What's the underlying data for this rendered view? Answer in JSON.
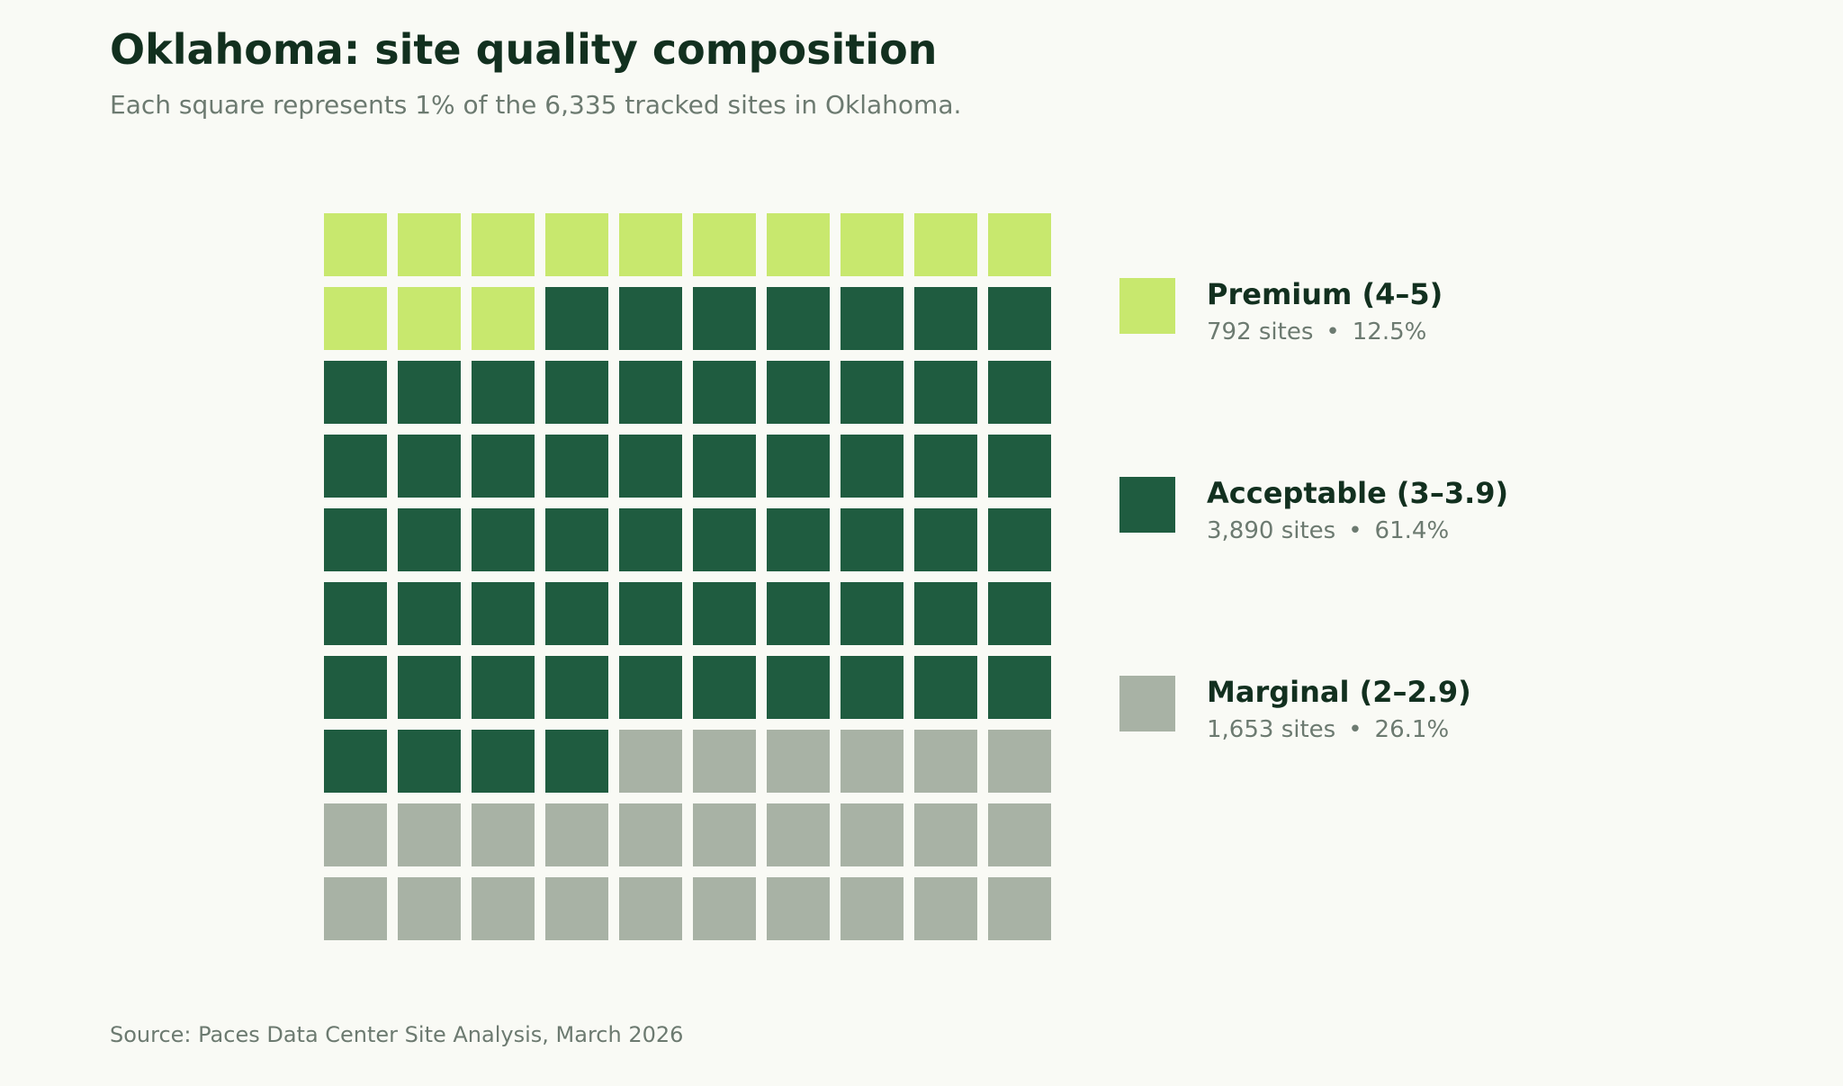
{
  "chart_data": {
    "type": "waffle",
    "title": "Oklahoma: site quality composition",
    "subtitle": "Each square represents 1% of the 6,335 tracked sites in Oklahoma.",
    "grid": {
      "rows": 10,
      "cols": 10
    },
    "total_sites": 6335,
    "series": [
      {
        "name": "Premium (4–5)",
        "sites": 792,
        "sites_label": "792 sites",
        "percent": 12.5,
        "percent_label": "12.5%",
        "squares": 13,
        "color": "#c8e86e"
      },
      {
        "name": "Acceptable (3–3.9)",
        "sites": 3890,
        "sites_label": "3,890 sites",
        "percent": 61.4,
        "percent_label": "61.4%",
        "squares": 61,
        "color": "#1f5c40"
      },
      {
        "name": "Marginal (2–2.9)",
        "sites": 1653,
        "sites_label": "1,653 sites",
        "percent": 26.1,
        "percent_label": "26.1%",
        "squares": 26,
        "color": "#a8b2a5"
      }
    ],
    "legend_position": "right",
    "separator": "•",
    "source": "Source: Paces Data Center Site Analysis, March 2026"
  }
}
